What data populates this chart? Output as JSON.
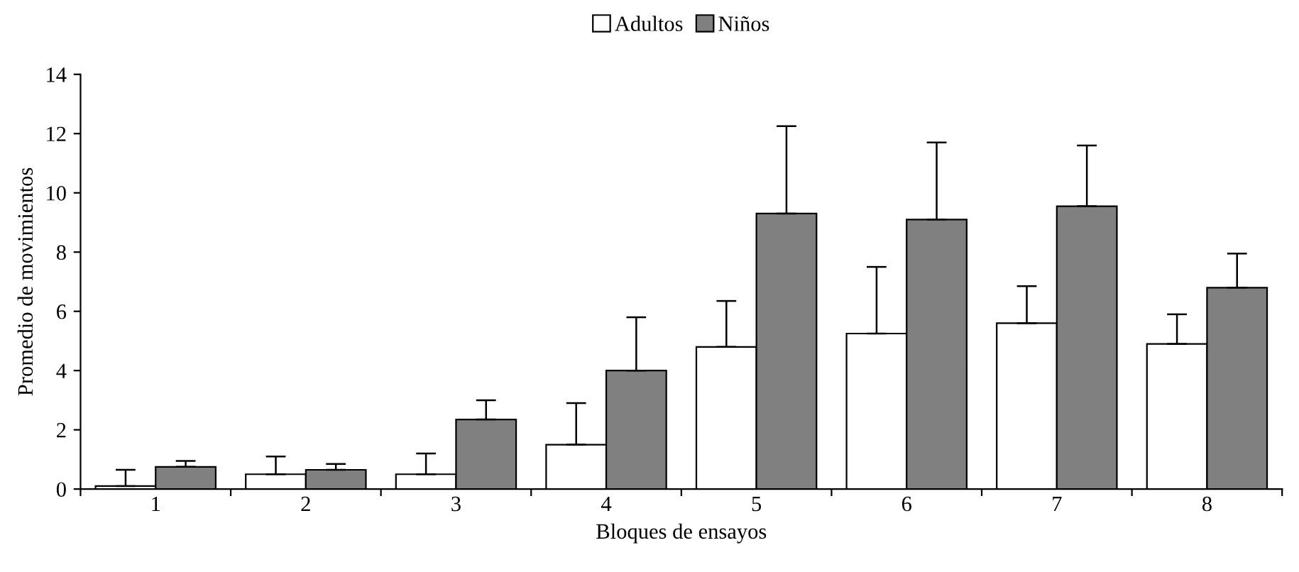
{
  "chart_data": {
    "type": "bar",
    "xlabel": "Bloques de ensayos",
    "ylabel": "Promedio de movimientos",
    "categories": [
      "1",
      "2",
      "3",
      "4",
      "5",
      "6",
      "7",
      "8"
    ],
    "series": [
      {
        "name": "Adultos",
        "color": "#ffffff",
        "values": [
          0.1,
          0.5,
          0.5,
          1.5,
          4.8,
          5.25,
          5.6,
          4.9
        ],
        "errors": [
          [
            0.1,
            0.65
          ],
          [
            0.5,
            1.1
          ],
          [
            0.5,
            1.2
          ],
          [
            1.5,
            2.9
          ],
          [
            4.8,
            6.35
          ],
          [
            5.25,
            7.5
          ],
          [
            5.6,
            6.85
          ],
          [
            4.9,
            5.9
          ]
        ]
      },
      {
        "name": "Niños",
        "color": "#808080",
        "values": [
          0.75,
          0.65,
          2.35,
          4.0,
          9.3,
          9.1,
          9.55,
          6.8
        ],
        "errors": [
          [
            0.75,
            0.95
          ],
          [
            0.65,
            0.85
          ],
          [
            2.35,
            3.0
          ],
          [
            4.0,
            5.8
          ],
          [
            9.3,
            12.25
          ],
          [
            9.1,
            11.7
          ],
          [
            9.55,
            11.6
          ],
          [
            6.8,
            7.95
          ]
        ]
      }
    ],
    "ylim": [
      0,
      14
    ],
    "yticks": [
      0,
      2,
      4,
      6,
      8,
      10,
      12,
      14
    ],
    "grid": false,
    "legend": "top"
  }
}
